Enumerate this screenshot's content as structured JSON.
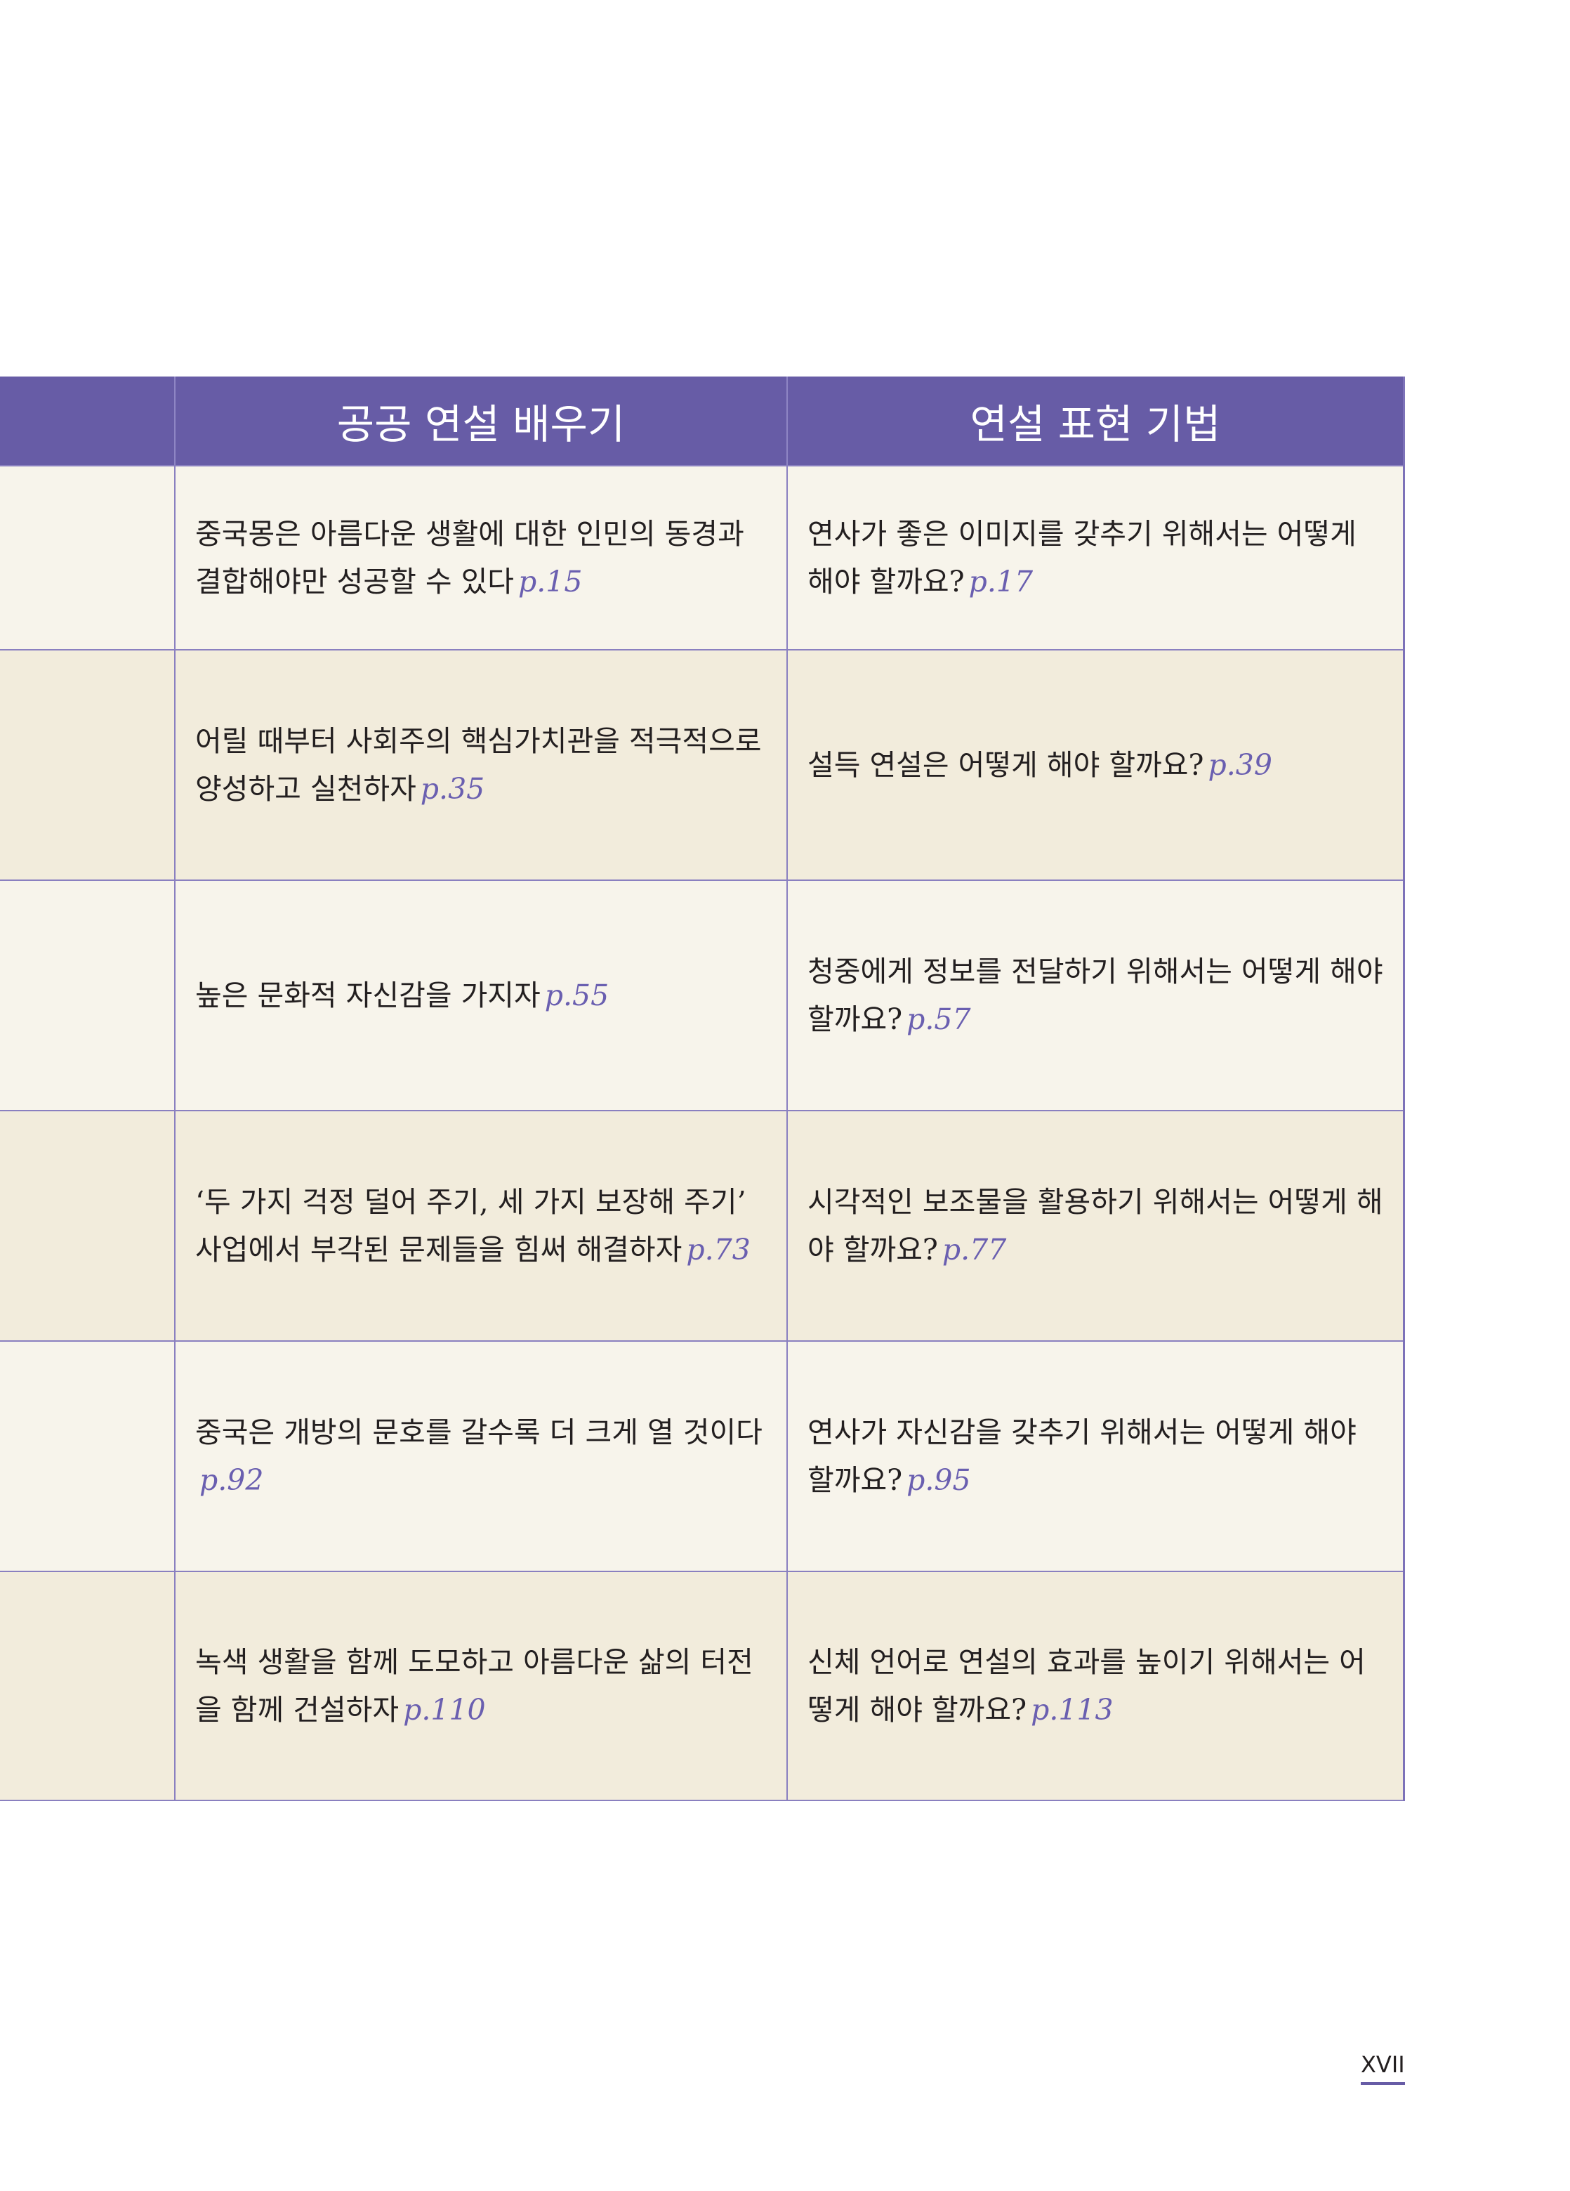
{
  "table": {
    "headers": [
      "",
      "공공 연설 배우기",
      "연설 표현 기법"
    ],
    "rows": [
      {
        "c1": "",
        "c2": {
          "text": "중국몽은 아름다운 생활에 대한 인민의 동경과 결합해야만 성공할 수 있다",
          "page": "p.15"
        },
        "c3": {
          "text": "연사가 좋은 이미지를 갖추기 위해서는 어떻게 해야 할까요?",
          "page": "p.17"
        }
      },
      {
        "c1": "",
        "c2": {
          "text": "어릴 때부터 사회주의 핵심가치관을 적극적으로 양성하고 실천하자",
          "page": "p.35"
        },
        "c3": {
          "text": "설득 연설은 어떻게 해야 할까요?",
          "page": "p.39"
        }
      },
      {
        "c1": "",
        "c2": {
          "text": "높은 문화적 자신감을 가지자",
          "page": "p.55"
        },
        "c3": {
          "text": "청중에게 정보를 전달하기 위해서는 어떻게 해야 할까요?",
          "page": "p.57"
        }
      },
      {
        "c1": "",
        "c2": {
          "text": "‘두 가지 걱정 덜어 주기, 세 가지 보장해 주기’ 사업에서 부각된 문제들을 힘써 해결하자",
          "page": "p.73"
        },
        "c3": {
          "text": "시각적인 보조물을 활용하기 위해서는 어떻게 해야 할까요?",
          "page": "p.77"
        }
      },
      {
        "c1": "",
        "c2": {
          "text": "중국은 개방의 문호를 갈수록 더 크게 열 것이다",
          "page": "p.92"
        },
        "c3": {
          "text": "연사가 자신감을 갖추기 위해서는 어떻게 해야 할까요?",
          "page": "p.95"
        }
      },
      {
        "c1": "",
        "c2": {
          "text": "녹색 생활을 함께 도모하고 아름다운 삶의 터전을 함께 건설하자",
          "page": "p.110"
        },
        "c3": {
          "text": "신체 언어로 연설의 효과를 높이기 위해서는 어떻게 해야 할까요?",
          "page": "p.113"
        }
      }
    ]
  },
  "page_number": "XVII",
  "colors": {
    "header_bg": "#675ca6",
    "row_odd": "#f7f4eb",
    "row_even": "#f2ecdc",
    "page_ref": "#6a5fb0"
  }
}
